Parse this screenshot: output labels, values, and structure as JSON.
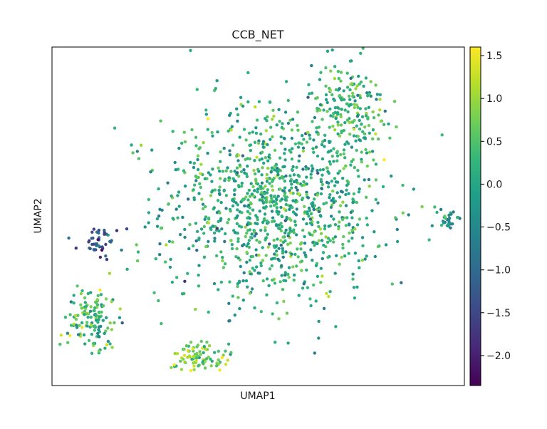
{
  "chart_data": {
    "type": "scatter",
    "title": "CCB_NET",
    "xlabel": "UMAP1",
    "ylabel": "UMAP2",
    "xlim": [
      0,
      100
    ],
    "ylim": [
      0,
      100
    ],
    "x_ticks_shown": false,
    "y_ticks_shown": false,
    "grid": false,
    "colormap": "viridis",
    "colorbar": {
      "min": -2.35,
      "max": 1.6,
      "ticks": [
        1.5,
        1.0,
        0.5,
        0.0,
        -0.5,
        -1.0,
        -1.5,
        -2.0
      ],
      "tick_labels": [
        "1.5",
        "1.0",
        "0.5",
        "0.0",
        "−0.5",
        "−1.0",
        "−1.5",
        "−2.0"
      ],
      "stops": [
        "#440154",
        "#482878",
        "#3e4989",
        "#31688e",
        "#26828e",
        "#1f9e89",
        "#35b779",
        "#6ece58",
        "#b5de2b",
        "#fde725"
      ]
    },
    "clusters": [
      {
        "name": "main",
        "center": [
          54,
          54
        ],
        "spread": [
          18,
          20
        ],
        "count": 1100,
        "value_mean": 0.15,
        "value_sd": 0.45
      },
      {
        "name": "main-top",
        "center": [
          72,
          82
        ],
        "spread": [
          6,
          9
        ],
        "count": 180,
        "value_mean": 0.25,
        "value_sd": 0.45
      },
      {
        "name": "main-bottom-left",
        "center": [
          36,
          9
        ],
        "spread": [
          5,
          3
        ],
        "count": 90,
        "value_mean": 0.75,
        "value_sd": 0.4
      },
      {
        "name": "left-upper",
        "center": [
          11,
          42
        ],
        "spread": [
          4,
          4
        ],
        "count": 45,
        "value_mean": -1.3,
        "value_sd": 0.5
      },
      {
        "name": "left-lower",
        "center": [
          10,
          20
        ],
        "spread": [
          4,
          6
        ],
        "count": 130,
        "value_mean": 0.35,
        "value_sd": 0.5
      },
      {
        "name": "right-small",
        "center": [
          96,
          49
        ],
        "spread": [
          2,
          2
        ],
        "count": 28,
        "value_mean": -0.45,
        "value_sd": 0.4
      }
    ]
  }
}
